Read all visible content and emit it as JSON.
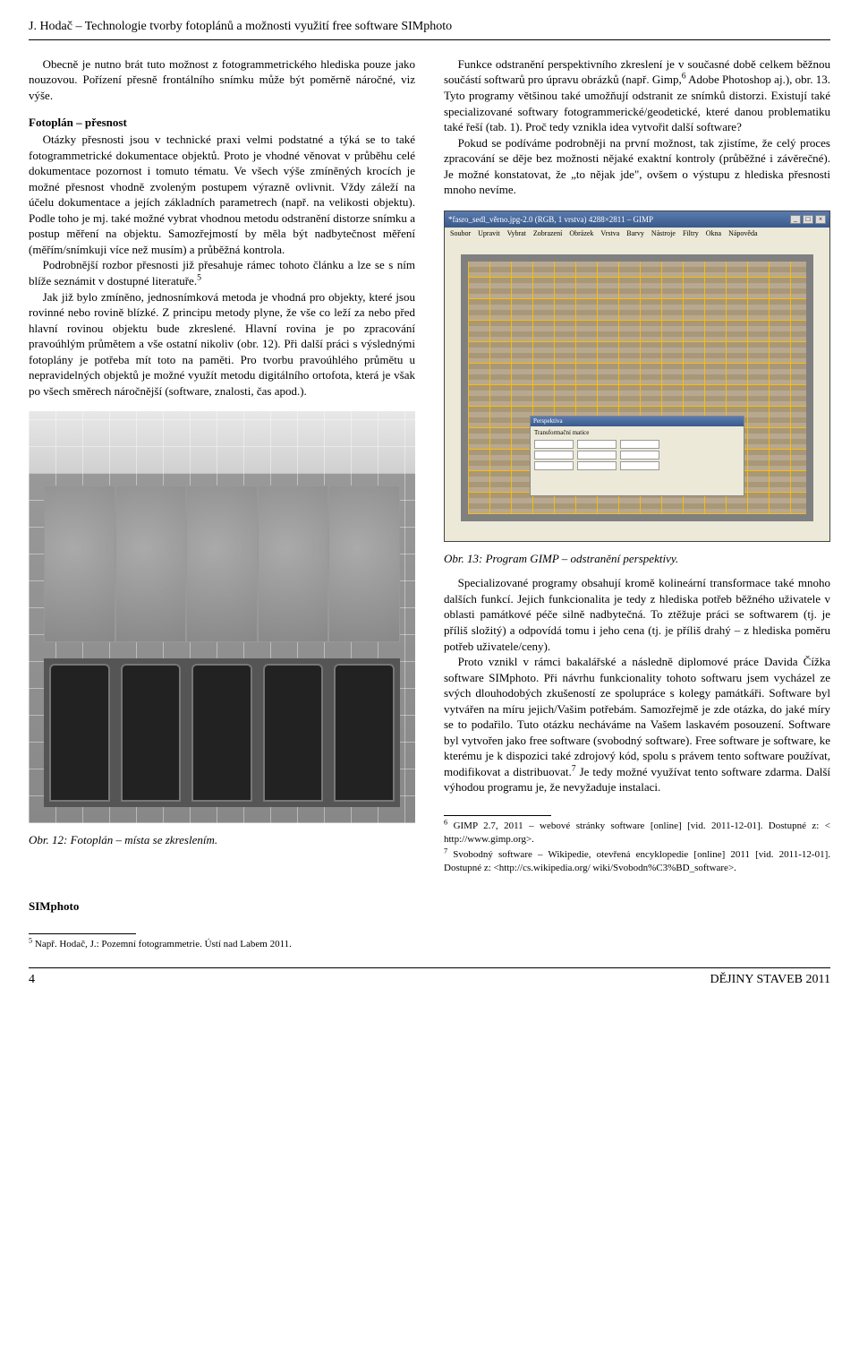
{
  "header": "J. Hodač – Technologie tvorby fotoplánů a možnosti využití free software SIMphoto",
  "leftColumn": {
    "intro": "Obecně je nutno brát tuto možnost z fotogrammetrického hlediska pouze jako nouzovou. Pořízení přesně frontálního snímku může být poměrně náročné, viz výše.",
    "sectionTitle": "Fotoplán – přesnost",
    "p1": "Otázky přesnosti jsou v technické praxi velmi podstatné a týká se to také fotogrammetrické dokumentace objektů. Proto je vhodné věnovat v průběhu celé dokumentace pozornost i tomuto tématu. Ve všech výše zmíněných krocích je možné přesnost vhodně zvoleným postupem výrazně ovlivnit. Vždy záleží na účelu dokumentace a jejích základních parametrech (např. na velikosti objektu). Podle toho je mj. také možné vybrat vhodnou metodu odstranění distorze snímku a postup měření na objektu. Samozřejmostí by měla být nadbytečnost měření (měřím/snímkuji více než musím) a průběžná kontrola.",
    "p2pre": "Podrobnější rozbor přesnosti již přesahuje rámec tohoto článku a lze se s ním blíže seznámit v dostupné literatuře.",
    "p2sup": "5",
    "p3pre": "Jak již bylo zmíněno, jednosnímková metoda je vhodná pro objekty, které jsou rovinné nebo rovině blízké. Z principu metody plyne, že vše co leží za nebo před hlavní rovinou objektu bude zkreslené. Hlavní rovina je po zpracování pravoúhlým průmětem a vše ostatní nikoliv (obr. 12). Při další práci s výslednými fotoplány je potřeba mít toto na paměti. Pro tvorbu pravoúhlého průmětu u nepravidelných objektů je možné využít metodu digitálního ortofota, která je však po všech směrech náročnější (software, znalosti, čas apod.).",
    "caption12": "Obr. 12: Fotoplán – místa se zkreslením.",
    "simphotoHeading": "SIMphoto",
    "footnote5": "Např. Hodač, J.: Pozemní fotogrammetrie. Ústí nad Labem 2011."
  },
  "rightColumn": {
    "p1pre": "Funkce odstranění perspektivního zkreslení je v současné době celkem běžnou součástí softwarů pro úpravu obrázků (např. Gimp,",
    "p1sup": "6",
    "p1post": " Adobe Photoshop aj.), obr. 13. Tyto programy většinou také umožňují odstranit ze snímků distorzi. Existují také specializované softwary fotogrammerické/geodetické, které danou problematiku také řeší (tab. 1). Proč tedy vznikla idea vytvořit další software?",
    "p2": "Pokud se podíváme podrobněji na první možnost, tak zjistíme, že celý proces zpracování se děje bez možnosti nějaké exaktní kontroly (průběžné i závěrečné). Je možné konstatovat, že „to nějak jde\", ovšem o výstupu z hlediska přesnosti mnoho nevíme.",
    "gimpTitle": "*fasro_sedl_věrno.jpg-2.0 (RGB, 1 vrstva) 4288×2811 – GIMP",
    "gimpMenu": [
      "Soubor",
      "Upravit",
      "Vybrat",
      "Zobrazení",
      "Obrázek",
      "Vrstva",
      "Barvy",
      "Nástroje",
      "Filtry",
      "Okna",
      "Nápověda"
    ],
    "gimpDialog": {
      "title": "Perspektiva",
      "label": "Transformační matice"
    },
    "caption13": "Obr. 13: Program GIMP – odstranění perspektivy.",
    "p3": "Specializované programy obsahují kromě kolineární transformace také mnoho dalších funkcí. Jejich funkcionalita je tedy z hlediska potřeb běžného uživatele v oblasti památkové péče silně nadbytečná. To ztěžuje práci se softwarem (tj. je příliš složitý) a odpovídá tomu i jeho cena (tj. je příliš drahý – z hlediska poměru potřeb uživatele/ceny).",
    "p4pre": "Proto vznikl v rámci bakalářské a následně diplomové práce Davida Čížka software SIMphoto. Při návrhu funkcionality tohoto softwaru jsem vycházel ze svých dlouhodobých zkušeností ze spolupráce s kolegy památkáři. Software byl vytvářen na míru jejich/Vašim potřebám. Samozřejmě je zde otázka, do jaké míry se to podařilo. Tuto otázku necháváme na Vašem laskavém posouzení. Software byl vytvořen jako free software (svobodný software). Free software je software, ke kterému je k dispozici také zdrojový kód, spolu s právem tento software používat, modifikovat a distribuovat.",
    "p4sup": "7",
    "p4post": " Je tedy možné využívat tento software zdarma. Další výhodou programu je, že nevyžaduje instalaci.",
    "footnote6": "GIMP 2.7, 2011 – webové stránky software [online] [vid. 2011-12-01]. Dostupné z: < http://www.gimp.org>.",
    "footnote7": "Svobodný software – Wikipedie, otevřená encyklopedie [online] 2011 [vid. 2011-12-01]. Dostupné z: <http://cs.wikipedia.org/ wiki/Svobodn%C3%BD_software>."
  },
  "footer": {
    "pageNumber": "4",
    "journal": "DĚJINY STAVEB 2011"
  }
}
